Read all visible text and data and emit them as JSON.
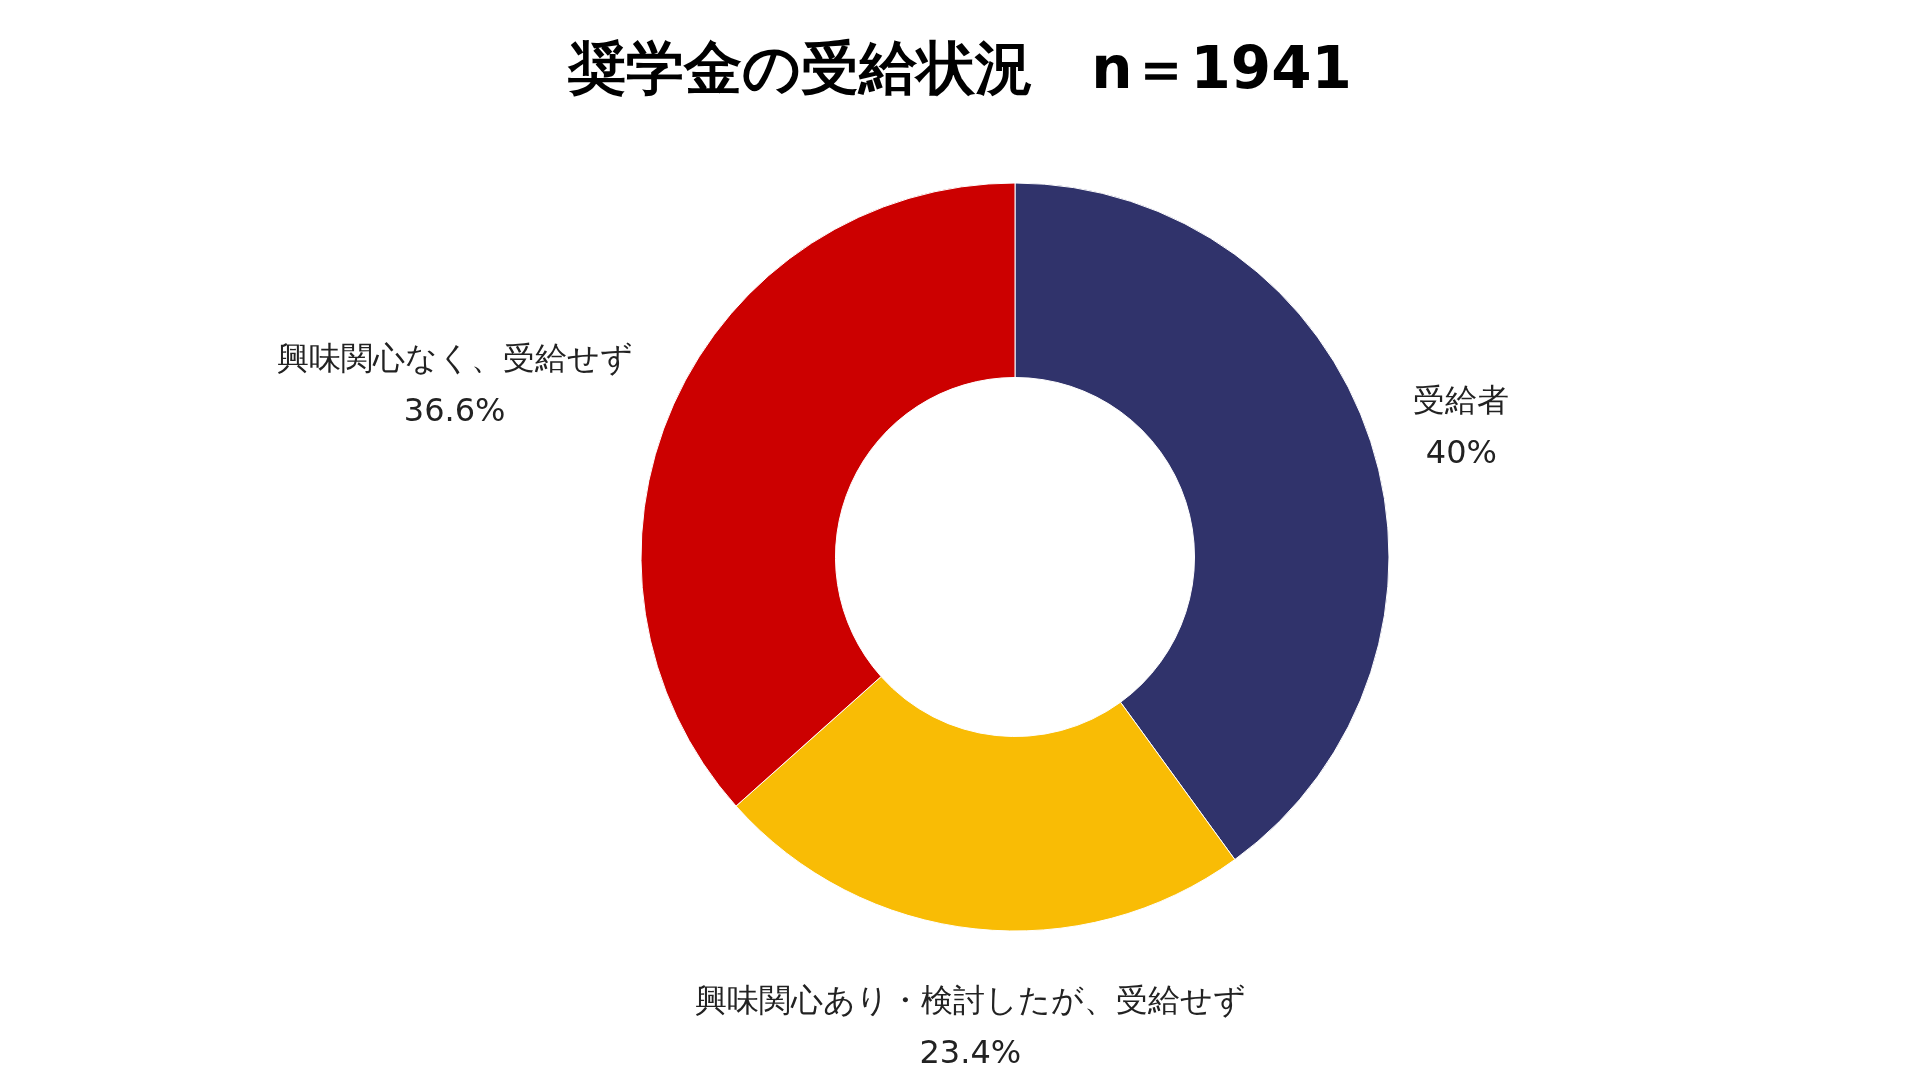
{
  "chart_data": {
    "type": "donut",
    "title": "奨学金の受給状況　n＝1941",
    "categories": [
      "受給者",
      "興味関心あり・検討したが、受給せず",
      "興味関心なく、受給せず"
    ],
    "values": [
      40,
      23.4,
      36.6
    ],
    "colors": [
      "#30336b",
      "#f9bc05",
      "#cc0000"
    ],
    "value_labels": [
      "40%",
      "23.4%",
      "36.6%"
    ]
  }
}
